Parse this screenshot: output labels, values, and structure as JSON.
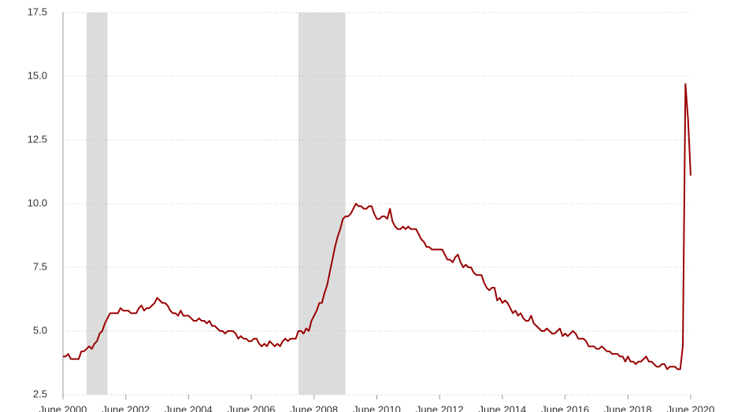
{
  "chart_data": {
    "type": "line",
    "x": [
      "2000-06",
      "2000-07",
      "2000-08",
      "2000-09",
      "2000-10",
      "2000-11",
      "2000-12",
      "2001-01",
      "2001-02",
      "2001-03",
      "2001-04",
      "2001-05",
      "2001-06",
      "2001-07",
      "2001-08",
      "2001-09",
      "2001-10",
      "2001-11",
      "2001-12",
      "2002-01",
      "2002-02",
      "2002-03",
      "2002-04",
      "2002-05",
      "2002-06",
      "2002-07",
      "2002-08",
      "2002-09",
      "2002-10",
      "2002-11",
      "2002-12",
      "2003-01",
      "2003-02",
      "2003-03",
      "2003-04",
      "2003-05",
      "2003-06",
      "2003-07",
      "2003-08",
      "2003-09",
      "2003-10",
      "2003-11",
      "2003-12",
      "2004-01",
      "2004-02",
      "2004-03",
      "2004-04",
      "2004-05",
      "2004-06",
      "2004-07",
      "2004-08",
      "2004-09",
      "2004-10",
      "2004-11",
      "2004-12",
      "2005-01",
      "2005-02",
      "2005-03",
      "2005-04",
      "2005-05",
      "2005-06",
      "2005-07",
      "2005-08",
      "2005-09",
      "2005-10",
      "2005-11",
      "2005-12",
      "2006-01",
      "2006-02",
      "2006-03",
      "2006-04",
      "2006-05",
      "2006-06",
      "2006-07",
      "2006-08",
      "2006-09",
      "2006-10",
      "2006-11",
      "2006-12",
      "2007-01",
      "2007-02",
      "2007-03",
      "2007-04",
      "2007-05",
      "2007-06",
      "2007-07",
      "2007-08",
      "2007-09",
      "2007-10",
      "2007-11",
      "2007-12",
      "2008-01",
      "2008-02",
      "2008-03",
      "2008-04",
      "2008-05",
      "2008-06",
      "2008-07",
      "2008-08",
      "2008-09",
      "2008-10",
      "2008-11",
      "2008-12",
      "2009-01",
      "2009-02",
      "2009-03",
      "2009-04",
      "2009-05",
      "2009-06",
      "2009-07",
      "2009-08",
      "2009-09",
      "2009-10",
      "2009-11",
      "2009-12",
      "2010-01",
      "2010-02",
      "2010-03",
      "2010-04",
      "2010-05",
      "2010-06",
      "2010-07",
      "2010-08",
      "2010-09",
      "2010-10",
      "2010-11",
      "2010-12",
      "2011-01",
      "2011-02",
      "2011-03",
      "2011-04",
      "2011-05",
      "2011-06",
      "2011-07",
      "2011-08",
      "2011-09",
      "2011-10",
      "2011-11",
      "2011-12",
      "2012-01",
      "2012-02",
      "2012-03",
      "2012-04",
      "2012-05",
      "2012-06",
      "2012-07",
      "2012-08",
      "2012-09",
      "2012-10",
      "2012-11",
      "2012-12",
      "2013-01",
      "2013-02",
      "2013-03",
      "2013-04",
      "2013-05",
      "2013-06",
      "2013-07",
      "2013-08",
      "2013-09",
      "2013-10",
      "2013-11",
      "2013-12",
      "2014-01",
      "2014-02",
      "2014-03",
      "2014-04",
      "2014-05",
      "2014-06",
      "2014-07",
      "2014-08",
      "2014-09",
      "2014-10",
      "2014-11",
      "2014-12",
      "2015-01",
      "2015-02",
      "2015-03",
      "2015-04",
      "2015-05",
      "2015-06",
      "2015-07",
      "2015-08",
      "2015-09",
      "2015-10",
      "2015-11",
      "2015-12",
      "2016-01",
      "2016-02",
      "2016-03",
      "2016-04",
      "2016-05",
      "2016-06",
      "2016-07",
      "2016-08",
      "2016-09",
      "2016-10",
      "2016-11",
      "2016-12",
      "2017-01",
      "2017-02",
      "2017-03",
      "2017-04",
      "2017-05",
      "2017-06",
      "2017-07",
      "2017-08",
      "2017-09",
      "2017-10",
      "2017-11",
      "2017-12",
      "2018-01",
      "2018-02",
      "2018-03",
      "2018-04",
      "2018-05",
      "2018-06",
      "2018-07",
      "2018-08",
      "2018-09",
      "2018-10",
      "2018-11",
      "2018-12",
      "2019-01",
      "2019-02",
      "2019-03",
      "2019-04",
      "2019-05",
      "2019-06",
      "2019-07",
      "2019-08",
      "2019-09",
      "2019-10",
      "2019-11",
      "2019-12",
      "2020-01",
      "2020-02",
      "2020-03",
      "2020-04",
      "2020-05",
      "2020-06"
    ],
    "series": [
      {
        "color": "#990000",
        "values": [
          4.0,
          4.0,
          4.1,
          3.9,
          3.9,
          3.9,
          3.9,
          4.2,
          4.2,
          4.3,
          4.4,
          4.3,
          4.5,
          4.6,
          4.9,
          5.0,
          5.3,
          5.5,
          5.7,
          5.7,
          5.7,
          5.7,
          5.9,
          5.8,
          5.8,
          5.8,
          5.7,
          5.7,
          5.7,
          5.9,
          6.0,
          5.8,
          5.9,
          5.9,
          6.0,
          6.1,
          6.3,
          6.2,
          6.1,
          6.1,
          6.0,
          5.8,
          5.7,
          5.7,
          5.6,
          5.8,
          5.6,
          5.6,
          5.6,
          5.5,
          5.4,
          5.4,
          5.5,
          5.4,
          5.4,
          5.3,
          5.4,
          5.2,
          5.2,
          5.1,
          5.0,
          5.0,
          4.9,
          5.0,
          5.0,
          5.0,
          4.9,
          4.7,
          4.8,
          4.7,
          4.7,
          4.6,
          4.6,
          4.7,
          4.7,
          4.5,
          4.4,
          4.5,
          4.4,
          4.6,
          4.5,
          4.4,
          4.5,
          4.4,
          4.6,
          4.7,
          4.6,
          4.7,
          4.7,
          4.7,
          5.0,
          5.0,
          4.9,
          5.1,
          5.0,
          5.4,
          5.6,
          5.8,
          6.1,
          6.1,
          6.5,
          6.8,
          7.3,
          7.8,
          8.3,
          8.7,
          9.0,
          9.4,
          9.5,
          9.5,
          9.6,
          9.8,
          10.0,
          9.9,
          9.9,
          9.8,
          9.8,
          9.9,
          9.9,
          9.6,
          9.4,
          9.4,
          9.5,
          9.5,
          9.4,
          9.8,
          9.3,
          9.1,
          9.0,
          9.0,
          9.1,
          9.0,
          9.1,
          9.0,
          9.0,
          9.0,
          8.8,
          8.6,
          8.5,
          8.3,
          8.3,
          8.2,
          8.2,
          8.2,
          8.2,
          8.2,
          8.0,
          7.8,
          7.8,
          7.7,
          7.9,
          8.0,
          7.7,
          7.5,
          7.6,
          7.5,
          7.5,
          7.3,
          7.2,
          7.2,
          7.2,
          6.9,
          6.7,
          6.6,
          6.7,
          6.7,
          6.2,
          6.3,
          6.1,
          6.2,
          6.1,
          5.9,
          5.7,
          5.8,
          5.6,
          5.7,
          5.5,
          5.4,
          5.4,
          5.6,
          5.3,
          5.2,
          5.1,
          5.0,
          5.0,
          5.1,
          5.0,
          4.9,
          4.9,
          5.0,
          5.1,
          4.8,
          4.9,
          4.8,
          4.9,
          5.0,
          4.9,
          4.7,
          4.7,
          4.7,
          4.6,
          4.4,
          4.4,
          4.4,
          4.3,
          4.3,
          4.4,
          4.3,
          4.2,
          4.2,
          4.1,
          4.1,
          4.1,
          4.0,
          4.0,
          3.8,
          4.0,
          3.8,
          3.8,
          3.7,
          3.8,
          3.8,
          3.9,
          4.0,
          3.8,
          3.8,
          3.7,
          3.6,
          3.6,
          3.7,
          3.7,
          3.5,
          3.6,
          3.6,
          3.6,
          3.5,
          3.5,
          4.4,
          14.7,
          13.3,
          11.1
        ]
      }
    ],
    "xlim": [
      "2000-06",
      "2020-06"
    ],
    "xticks": [
      {
        "value": "2000-06",
        "label": "June 2000"
      },
      {
        "value": "2002-06",
        "label": "June 2002"
      },
      {
        "value": "2004-06",
        "label": "June 2004"
      },
      {
        "value": "2006-06",
        "label": "June 2006"
      },
      {
        "value": "2008-06",
        "label": "June 2008"
      },
      {
        "value": "2010-06",
        "label": "June 2010"
      },
      {
        "value": "2012-06",
        "label": "June 2012"
      },
      {
        "value": "2014-06",
        "label": "June 2014"
      },
      {
        "value": "2016-06",
        "label": "June 2016"
      },
      {
        "value": "2018-06",
        "label": "June 2018"
      },
      {
        "value": "2020-06",
        "label": "June 2020"
      }
    ],
    "ylim": [
      2.5,
      17.5
    ],
    "yticks": [
      2.5,
      {
        "value": 5,
        "label": "5.0"
      },
      7.5,
      {
        "value": 10,
        "label": "10.0"
      },
      12.5,
      {
        "value": 15,
        "label": "15.0"
      },
      17.5
    ],
    "grid": true,
    "shaded_ranges": [
      [
        "2001-03",
        "2001-11"
      ],
      [
        "2007-12",
        "2009-06"
      ]
    ],
    "shade_color": "#dcdcdc"
  }
}
